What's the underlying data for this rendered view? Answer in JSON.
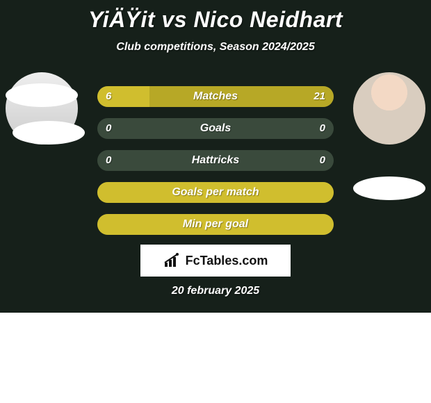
{
  "title": "YiÄŸit vs Nico Neidhart",
  "subtitle": "Club competitions, Season 2024/2025",
  "date": "20 february 2025",
  "brand": "FcTables.com",
  "colors": {
    "panel_bg": "#16201a",
    "bar_bg": "#3a4a3c",
    "left_fill": "#d0be2e",
    "right_fill": "#b7a826",
    "text": "#ffffff"
  },
  "rows": [
    {
      "label": "Matches",
      "left": "6",
      "right": "21",
      "left_pct": 22,
      "right_pct": 78
    },
    {
      "label": "Goals",
      "left": "0",
      "right": "0",
      "left_pct": 0,
      "right_pct": 0
    },
    {
      "label": "Hattricks",
      "left": "0",
      "right": "0",
      "left_pct": 0,
      "right_pct": 0
    },
    {
      "label": "Goals per match",
      "left": "",
      "right": "",
      "left_pct": 100,
      "right_pct": 0
    },
    {
      "label": "Min per goal",
      "left": "",
      "right": "",
      "left_pct": 100,
      "right_pct": 0
    }
  ]
}
